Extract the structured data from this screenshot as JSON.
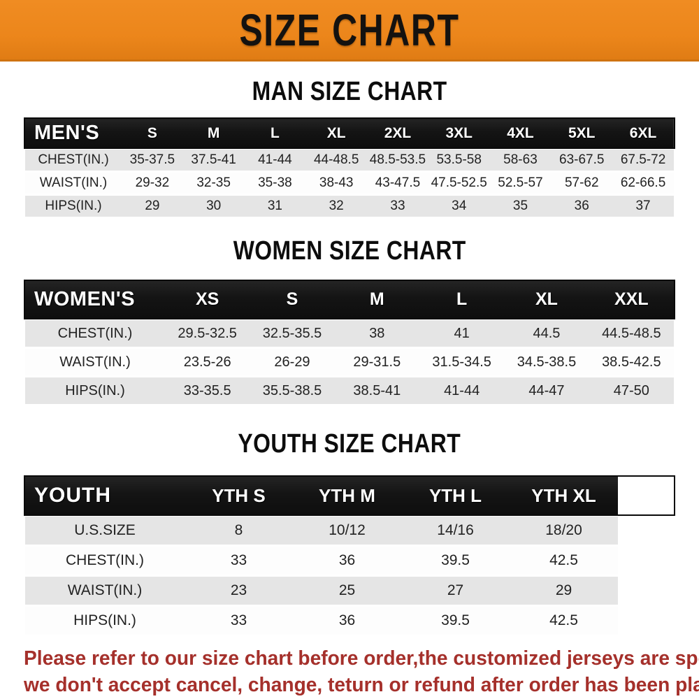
{
  "banner": {
    "title": "SIZE CHART",
    "bg_color": "#ec861b",
    "text_color": "#141210"
  },
  "tables": {
    "men": {
      "heading": "MAN SIZE CHART",
      "header": [
        "MEN'S",
        "S",
        "M",
        "L",
        "XL",
        "2XL",
        "3XL",
        "4XL",
        "5XL",
        "6XL"
      ],
      "rows": [
        [
          "CHEST(IN.)",
          "35-37.5",
          "37.5-41",
          "41-44",
          "44-48.5",
          "48.5-53.5",
          "53.5-58",
          "58-63",
          "63-67.5",
          "67.5-72"
        ],
        [
          "WAIST(IN.)",
          "29-32",
          "32-35",
          "35-38",
          "38-43",
          "43-47.5",
          "47.5-52.5",
          "52.5-57",
          "57-62",
          "62-66.5"
        ],
        [
          "HIPS(IN.)",
          "29",
          "30",
          "31",
          "32",
          "33",
          "34",
          "35",
          "36",
          "37"
        ]
      ]
    },
    "women": {
      "heading": "WOMEN SIZE CHART",
      "header": [
        "WOMEN'S",
        "XS",
        "S",
        "M",
        "L",
        "XL",
        "XXL"
      ],
      "rows": [
        [
          "CHEST(IN.)",
          "29.5-32.5",
          "32.5-35.5",
          "38",
          "41",
          "44.5",
          "44.5-48.5"
        ],
        [
          "WAIST(IN.)",
          "23.5-26",
          "26-29",
          "29-31.5",
          "31.5-34.5",
          "34.5-38.5",
          "38.5-42.5"
        ],
        [
          "HIPS(IN.)",
          "33-35.5",
          "35.5-38.5",
          "38.5-41",
          "41-44",
          "44-47",
          "47-50"
        ]
      ]
    },
    "youth": {
      "heading": "YOUTH SIZE CHART",
      "header": [
        "YOUTH",
        "YTH S",
        "YTH M",
        "YTH L",
        "YTH XL"
      ],
      "rows": [
        [
          "U.S.SIZE",
          "8",
          "10/12",
          "14/16",
          "18/20"
        ],
        [
          "CHEST(IN.)",
          "33",
          "36",
          "39.5",
          "42.5"
        ],
        [
          "WAIST(IN.)",
          "23",
          "25",
          "27",
          "29"
        ],
        [
          "HIPS(IN.)",
          "33",
          "36",
          "39.5",
          "42.5"
        ]
      ]
    }
  },
  "footer": {
    "line1": "Please refer to our size chart before order,the customized jerseys are special products,",
    "line2": "we don't accept cancel, change, teturn or refund after order has been placed!",
    "text_color": "#a5302b"
  },
  "colors": {
    "header_row_bg": "#141414",
    "header_row_text": "#ffffff",
    "row_gray": "#e5e5e5",
    "row_white": "#fdfdfd",
    "page_bg": "#ffffff"
  }
}
